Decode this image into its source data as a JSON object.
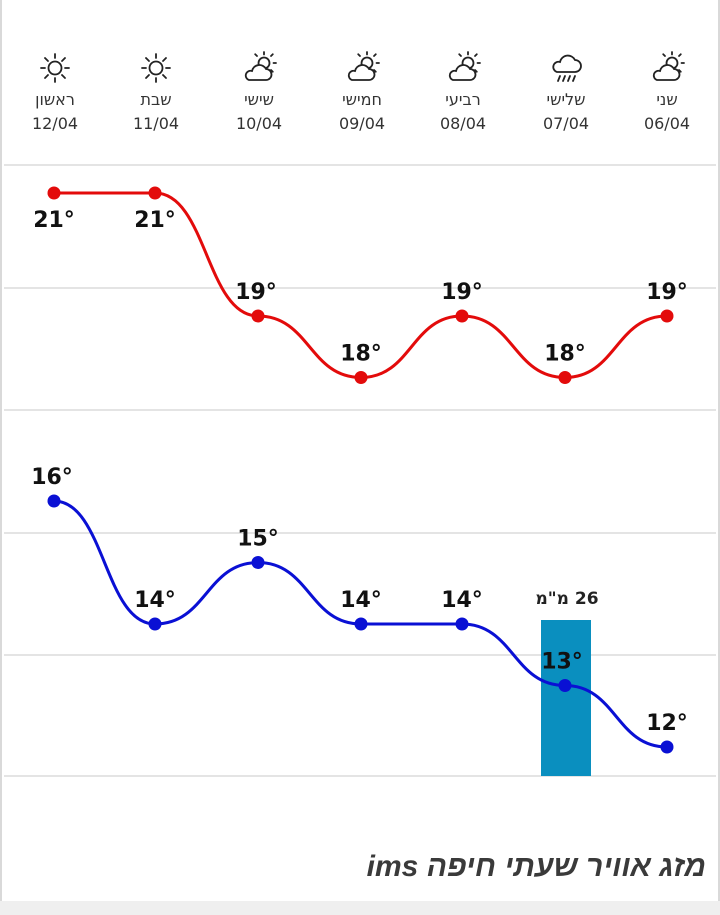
{
  "days": [
    {
      "name": "ראשון",
      "date": "12/04",
      "icon": "sun-icon"
    },
    {
      "name": "שבת",
      "date": "11/04",
      "icon": "sun-icon"
    },
    {
      "name": "שישי",
      "date": "10/04",
      "icon": "partly-cloudy-icon"
    },
    {
      "name": "חמישי",
      "date": "09/04",
      "icon": "partly-cloudy-icon"
    },
    {
      "name": "רביעי",
      "date": "08/04",
      "icon": "partly-cloudy-icon"
    },
    {
      "name": "שלישי",
      "date": "07/04",
      "icon": "rain-icon"
    },
    {
      "name": "שני",
      "date": "06/04",
      "icon": "partly-cloudy-icon"
    }
  ],
  "chart_data": {
    "type": "line",
    "categories": [
      "12/04",
      "11/04",
      "10/04",
      "09/04",
      "08/04",
      "07/04",
      "06/04"
    ],
    "series": [
      {
        "values": [
          21,
          21,
          19,
          18,
          19,
          18,
          19
        ],
        "color": "#e30b0b"
      },
      {
        "values": [
          16,
          14,
          15,
          14,
          14,
          13,
          12
        ],
        "color": "#0a10d4"
      }
    ],
    "labels_high": [
      "21°",
      "21°",
      "19°",
      "18°",
      "19°",
      "18°",
      "19°"
    ],
    "labels_low": [
      "16°",
      "14°",
      "15°",
      "14°",
      "14°",
      "13°",
      "12°"
    ],
    "precipitation": {
      "category": "07/04",
      "value_label": "26 מ\"מ",
      "color": "#0a8fbf"
    },
    "grid": true
  },
  "footer": {
    "title": "מזג אוויר שעתי חיפה ims"
  }
}
